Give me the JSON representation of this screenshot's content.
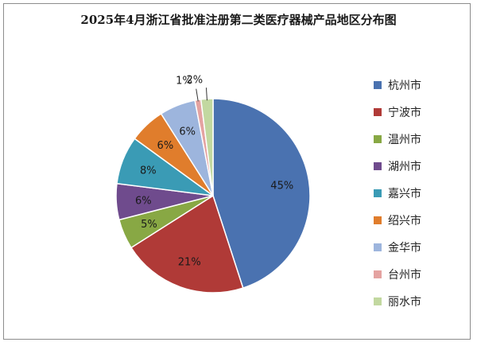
{
  "chart_data": {
    "type": "pie",
    "title": "2025年4月浙江省批准注册第二类医疗器械产品地区分布图",
    "categories": [
      "杭州市",
      "宁波市",
      "温州市",
      "湖州市",
      "嘉兴市",
      "绍兴市",
      "金华市",
      "台州市",
      "丽水市"
    ],
    "values": [
      45,
      21,
      5,
      6,
      8,
      6,
      6,
      1,
      2
    ],
    "labels": [
      "45%",
      "21%",
      "5%",
      "6%",
      "8%",
      "6%",
      "6%",
      "1%",
      "2%"
    ],
    "colors": [
      "#4a72b0",
      "#b03a37",
      "#88a844",
      "#6f4b8d",
      "#3a9bb5",
      "#e07d2c",
      "#9db5dd",
      "#e4a3a1",
      "#c2d8a0"
    ],
    "legend_position": "right",
    "start": "top",
    "direction": "clockwise"
  }
}
